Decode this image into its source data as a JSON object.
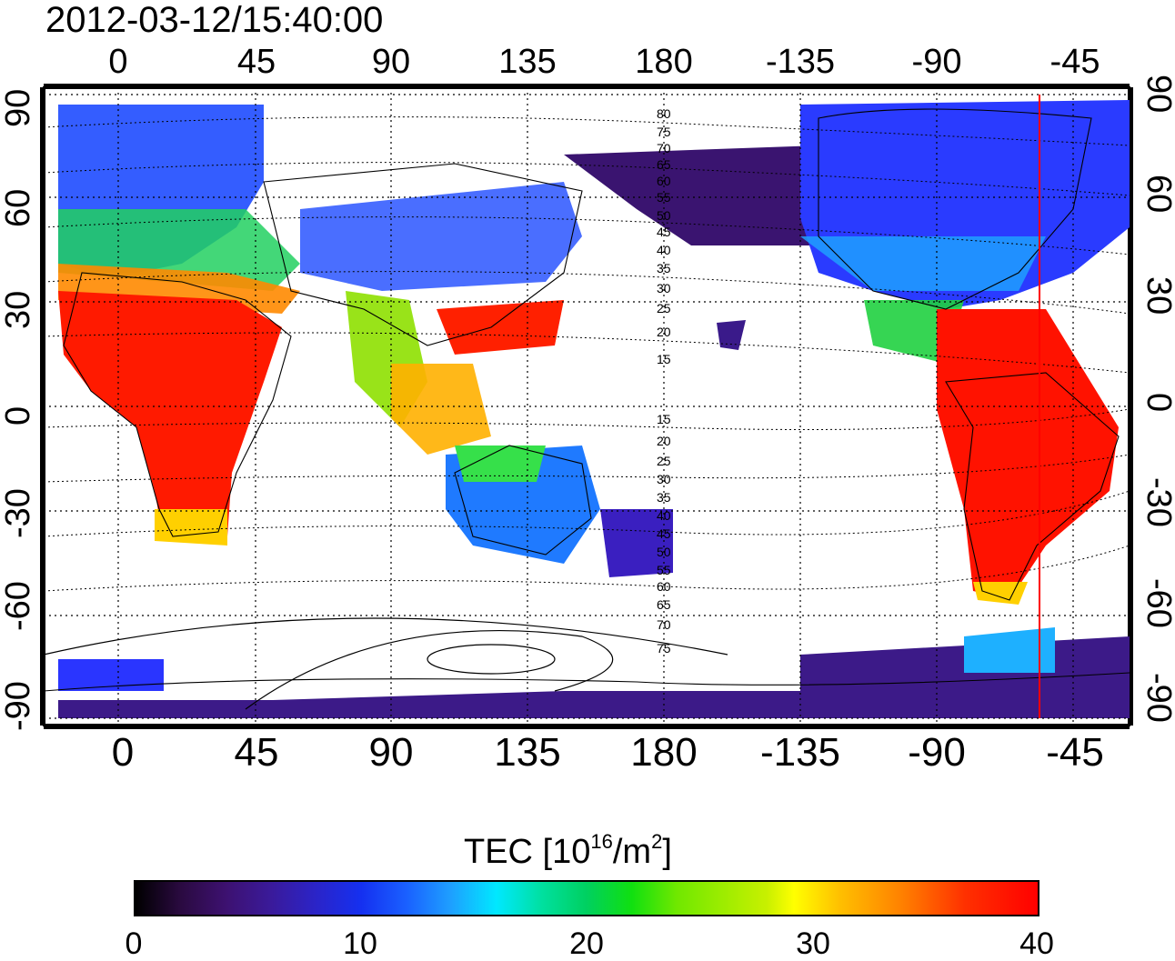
{
  "timestamp": "2012-03-12/15:40:00",
  "top_axis": [
    "0",
    "45",
    "90",
    "135",
    "180",
    "-135",
    "-90",
    "-45"
  ],
  "bottom_axis": [
    "0",
    "45",
    "90",
    "135",
    "180",
    "-135",
    "-90",
    "-45"
  ],
  "left_axis": [
    "90",
    "60",
    "30",
    "0",
    "-30",
    "-60",
    "-90"
  ],
  "right_axis": [
    "90",
    "60",
    "30",
    "0",
    "-30",
    "-60",
    "-90"
  ],
  "contour_labels_north": [
    "80",
    "75",
    "70",
    "65",
    "60",
    "55",
    "50",
    "45",
    "40",
    "35",
    "30",
    "25",
    "20",
    "15"
  ],
  "contour_labels_south": [
    "15",
    "20",
    "25",
    "30",
    "35",
    "40",
    "45",
    "50",
    "55",
    "60",
    "65",
    "70",
    "75"
  ],
  "colorbar": {
    "title_main": "TEC  [10",
    "title_exp1": "16",
    "title_mid": "/m",
    "title_exp2": "2",
    "title_end": "]",
    "ticks": [
      "0",
      "10",
      "20",
      "30",
      "40"
    ]
  },
  "colors": {
    "terminator_line": "#ff0000",
    "low": "#2a0a40",
    "high": "#ff0000"
  }
}
